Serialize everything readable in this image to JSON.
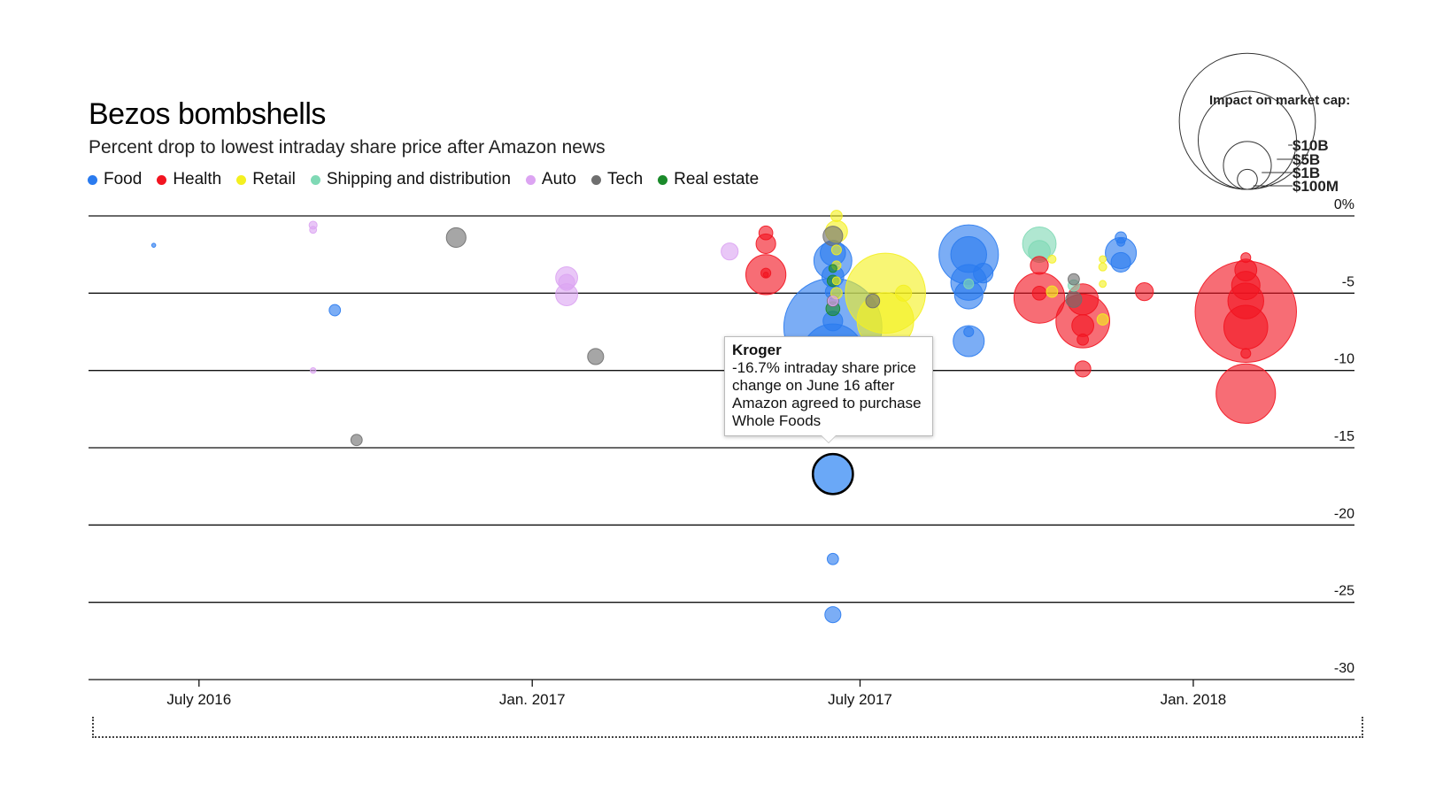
{
  "chart_data": {
    "type": "scatter",
    "title": "Bezos bombshells",
    "subtitle": "Percent drop to lowest intraday share price after Amazon news",
    "ylabel": "",
    "xlabel": "",
    "ylim": [
      -30,
      0
    ],
    "y_ticks": [
      {
        "value": 0,
        "label": "0%"
      },
      {
        "value": -5,
        "label": "-5"
      },
      {
        "value": -10,
        "label": "-10"
      },
      {
        "value": -15,
        "label": "-15"
      },
      {
        "value": -20,
        "label": "-20"
      },
      {
        "value": -25,
        "label": "-25"
      },
      {
        "value": -30,
        "label": "-30"
      }
    ],
    "xlim": [
      "2016-05-01",
      "2018-03-31"
    ],
    "x_ticks": [
      {
        "value": "2016-07-01",
        "label": "July 2016"
      },
      {
        "value": "2017-01-01",
        "label": "Jan. 2017"
      },
      {
        "value": "2017-07-01",
        "label": "July 2017"
      },
      {
        "value": "2018-01-01",
        "label": "Jan. 2018"
      }
    ],
    "grid": true,
    "legend_position": "top-left",
    "categories": [
      {
        "name": "Food",
        "color": "#2a7bef"
      },
      {
        "name": "Health",
        "color": "#f21420"
      },
      {
        "name": "Retail",
        "color": "#f4f020"
      },
      {
        "name": "Shipping and distribution",
        "color": "#7fd9b5"
      },
      {
        "name": "Auto",
        "color": "#dca4f2"
      },
      {
        "name": "Tech",
        "color": "#6f6f6f"
      },
      {
        "name": "Real estate",
        "color": "#1a8a2a"
      }
    ],
    "size_legend": {
      "title": "Impact on market cap:",
      "entries": [
        {
          "label": "$10B",
          "impact_musd": 10000
        },
        {
          "label": "$5B",
          "impact_musd": 5000
        },
        {
          "label": "$1B",
          "impact_musd": 1000
        },
        {
          "label": "$100M",
          "impact_musd": 100
        }
      ]
    },
    "points": [
      {
        "date": "2016-06-06",
        "y": -1.9,
        "cat": "Food",
        "impact_musd": 5
      },
      {
        "date": "2016-09-02",
        "y": -0.6,
        "cat": "Auto",
        "impact_musd": 20
      },
      {
        "date": "2016-09-02",
        "y": -0.9,
        "cat": "Auto",
        "impact_musd": 15
      },
      {
        "date": "2016-09-02",
        "y": -10.0,
        "cat": "Auto",
        "impact_musd": 10
      },
      {
        "date": "2016-09-14",
        "y": -6.1,
        "cat": "Food",
        "impact_musd": 40
      },
      {
        "date": "2016-09-26",
        "y": -14.5,
        "cat": "Tech",
        "impact_musd": 40
      },
      {
        "date": "2016-11-20",
        "y": -1.4,
        "cat": "Tech",
        "impact_musd": 120
      },
      {
        "date": "2017-01-20",
        "y": -4.0,
        "cat": "Auto",
        "impact_musd": 150
      },
      {
        "date": "2017-01-20",
        "y": -4.3,
        "cat": "Auto",
        "impact_musd": 80
      },
      {
        "date": "2017-01-20",
        "y": -5.1,
        "cat": "Auto",
        "impact_musd": 150
      },
      {
        "date": "2017-02-05",
        "y": -9.1,
        "cat": "Tech",
        "impact_musd": 80
      },
      {
        "date": "2017-04-20",
        "y": -2.3,
        "cat": "Auto",
        "impact_musd": 90
      },
      {
        "date": "2017-05-10",
        "y": -1.1,
        "cat": "Health",
        "impact_musd": 60
      },
      {
        "date": "2017-05-10",
        "y": -1.8,
        "cat": "Health",
        "impact_musd": 120
      },
      {
        "date": "2017-05-10",
        "y": -3.8,
        "cat": "Health",
        "impact_musd": 500
      },
      {
        "date": "2017-05-10",
        "y": -3.7,
        "cat": "Health",
        "impact_musd": 30
      },
      {
        "date": "2017-05-10",
        "y": -3.8,
        "cat": "Health",
        "impact_musd": 8
      },
      {
        "date": "2017-06-16",
        "y": -7.2,
        "cat": "Food",
        "impact_musd": 3000
      },
      {
        "date": "2017-06-16",
        "y": -9.0,
        "cat": "Food",
        "impact_musd": 1200
      },
      {
        "date": "2017-06-16",
        "y": -2.9,
        "cat": "Food",
        "impact_musd": 450
      },
      {
        "date": "2017-06-16",
        "y": -2.4,
        "cat": "Food",
        "impact_musd": 200
      },
      {
        "date": "2017-06-16",
        "y": -3.9,
        "cat": "Food",
        "impact_musd": 150
      },
      {
        "date": "2017-06-16",
        "y": -4.9,
        "cat": "Food",
        "impact_musd": 70
      },
      {
        "date": "2017-06-16",
        "y": -6.8,
        "cat": "Food",
        "impact_musd": 120
      },
      {
        "date": "2017-06-16",
        "y": -22.2,
        "cat": "Food",
        "impact_musd": 40
      },
      {
        "date": "2017-06-16",
        "y": -25.8,
        "cat": "Food",
        "impact_musd": 80
      },
      {
        "date": "2017-06-16",
        "y": -1.3,
        "cat": "Tech",
        "impact_musd": 120
      },
      {
        "date": "2017-06-16",
        "y": -5.5,
        "cat": "Tech",
        "impact_musd": 40
      },
      {
        "date": "2017-06-16",
        "y": -6.0,
        "cat": "Real estate",
        "impact_musd": 60
      },
      {
        "date": "2017-06-16",
        "y": -4.2,
        "cat": "Real estate",
        "impact_musd": 40
      },
      {
        "date": "2017-06-16",
        "y": -3.4,
        "cat": "Real estate",
        "impact_musd": 20
      },
      {
        "date": "2017-06-16",
        "y": -5.5,
        "cat": "Auto",
        "impact_musd": 30
      },
      {
        "date": "2017-06-18",
        "y": -1.0,
        "cat": "Retail",
        "impact_musd": 150
      },
      {
        "date": "2017-06-18",
        "y": 0.0,
        "cat": "Retail",
        "impact_musd": 40
      },
      {
        "date": "2017-06-18",
        "y": -2.2,
        "cat": "Retail",
        "impact_musd": 30
      },
      {
        "date": "2017-06-18",
        "y": -3.2,
        "cat": "Retail",
        "impact_musd": 25
      },
      {
        "date": "2017-06-18",
        "y": -4.2,
        "cat": "Retail",
        "impact_musd": 20
      },
      {
        "date": "2017-06-18",
        "y": -5.0,
        "cat": "Retail",
        "impact_musd": 40
      },
      {
        "date": "2017-07-15",
        "y": -5.0,
        "cat": "Retail",
        "impact_musd": 2000
      },
      {
        "date": "2017-07-15",
        "y": -6.8,
        "cat": "Retail",
        "impact_musd": 1000
      },
      {
        "date": "2017-07-25",
        "y": -5.0,
        "cat": "Retail",
        "impact_musd": 80
      },
      {
        "date": "2017-07-08",
        "y": -5.5,
        "cat": "Tech",
        "impact_musd": 60
      },
      {
        "date": "2017-08-30",
        "y": -2.5,
        "cat": "Food",
        "impact_musd": 1100
      },
      {
        "date": "2017-08-30",
        "y": -2.5,
        "cat": "Food",
        "impact_musd": 400
      },
      {
        "date": "2017-08-30",
        "y": -4.3,
        "cat": "Food",
        "impact_musd": 400
      },
      {
        "date": "2017-08-30",
        "y": -5.1,
        "cat": "Food",
        "impact_musd": 250
      },
      {
        "date": "2017-08-30",
        "y": -8.1,
        "cat": "Food",
        "impact_musd": 300
      },
      {
        "date": "2017-08-30",
        "y": -7.5,
        "cat": "Food",
        "impact_musd": 30
      },
      {
        "date": "2017-08-30",
        "y": -4.4,
        "cat": "Shipping and distribution",
        "impact_musd": 30
      },
      {
        "date": "2017-09-07",
        "y": -3.7,
        "cat": "Food",
        "impact_musd": 120
      },
      {
        "date": "2017-10-08",
        "y": -1.8,
        "cat": "Shipping and distribution",
        "impact_musd": 350
      },
      {
        "date": "2017-10-08",
        "y": -2.3,
        "cat": "Shipping and distribution",
        "impact_musd": 150
      },
      {
        "date": "2017-10-08",
        "y": -5.3,
        "cat": "Health",
        "impact_musd": 800
      },
      {
        "date": "2017-10-08",
        "y": -3.2,
        "cat": "Health",
        "impact_musd": 100
      },
      {
        "date": "2017-10-08",
        "y": -5.0,
        "cat": "Health",
        "impact_musd": 60
      },
      {
        "date": "2017-10-15",
        "y": -2.8,
        "cat": "Retail",
        "impact_musd": 20
      },
      {
        "date": "2017-10-15",
        "y": -4.9,
        "cat": "Retail",
        "impact_musd": 40
      },
      {
        "date": "2017-10-27",
        "y": -4.5,
        "cat": "Shipping and distribution",
        "impact_musd": 40
      },
      {
        "date": "2017-10-27",
        "y": -4.1,
        "cat": "Tech",
        "impact_musd": 40
      },
      {
        "date": "2017-10-27",
        "y": -5.4,
        "cat": "Tech",
        "impact_musd": 80
      },
      {
        "date": "2017-11-01",
        "y": -6.8,
        "cat": "Health",
        "impact_musd": 900
      },
      {
        "date": "2017-11-01",
        "y": -5.4,
        "cat": "Health",
        "impact_musd": 300
      },
      {
        "date": "2017-11-01",
        "y": -7.1,
        "cat": "Health",
        "impact_musd": 150
      },
      {
        "date": "2017-11-01",
        "y": -8.0,
        "cat": "Health",
        "impact_musd": 40
      },
      {
        "date": "2017-11-01",
        "y": -9.9,
        "cat": "Health",
        "impact_musd": 80
      },
      {
        "date": "2017-11-12",
        "y": -3.3,
        "cat": "Retail",
        "impact_musd": 20
      },
      {
        "date": "2017-11-12",
        "y": -2.8,
        "cat": "Retail",
        "impact_musd": 15
      },
      {
        "date": "2017-11-12",
        "y": -4.4,
        "cat": "Retail",
        "impact_musd": 15
      },
      {
        "date": "2017-11-12",
        "y": -6.7,
        "cat": "Retail",
        "impact_musd": 40
      },
      {
        "date": "2017-11-22",
        "y": -1.4,
        "cat": "Food",
        "impact_musd": 40
      },
      {
        "date": "2017-11-22",
        "y": -2.4,
        "cat": "Food",
        "impact_musd": 300
      },
      {
        "date": "2017-11-22",
        "y": -3.0,
        "cat": "Food",
        "impact_musd": 120
      },
      {
        "date": "2017-11-22",
        "y": -1.7,
        "cat": "Food",
        "impact_musd": 20
      },
      {
        "date": "2017-12-05",
        "y": -4.9,
        "cat": "Health",
        "impact_musd": 100
      },
      {
        "date": "2018-01-30",
        "y": -6.2,
        "cat": "Health",
        "impact_musd": 3200
      },
      {
        "date": "2018-01-30",
        "y": -11.5,
        "cat": "Health",
        "impact_musd": 1100
      },
      {
        "date": "2018-01-30",
        "y": -7.2,
        "cat": "Health",
        "impact_musd": 600
      },
      {
        "date": "2018-01-30",
        "y": -5.5,
        "cat": "Health",
        "impact_musd": 400
      },
      {
        "date": "2018-01-30",
        "y": -4.5,
        "cat": "Health",
        "impact_musd": 250
      },
      {
        "date": "2018-01-30",
        "y": -3.5,
        "cat": "Health",
        "impact_musd": 150
      },
      {
        "date": "2018-01-30",
        "y": -2.7,
        "cat": "Health",
        "impact_musd": 30
      },
      {
        "date": "2018-01-30",
        "y": -8.9,
        "cat": "Health",
        "impact_musd": 30
      }
    ],
    "highlight": {
      "date": "2017-06-16",
      "y": -16.7,
      "cat": "Food",
      "impact_musd": 500,
      "company": "Kroger",
      "text": "-16.7% intraday share price change on June 16 after Amazon agreed to purchase Whole Foods"
    }
  }
}
